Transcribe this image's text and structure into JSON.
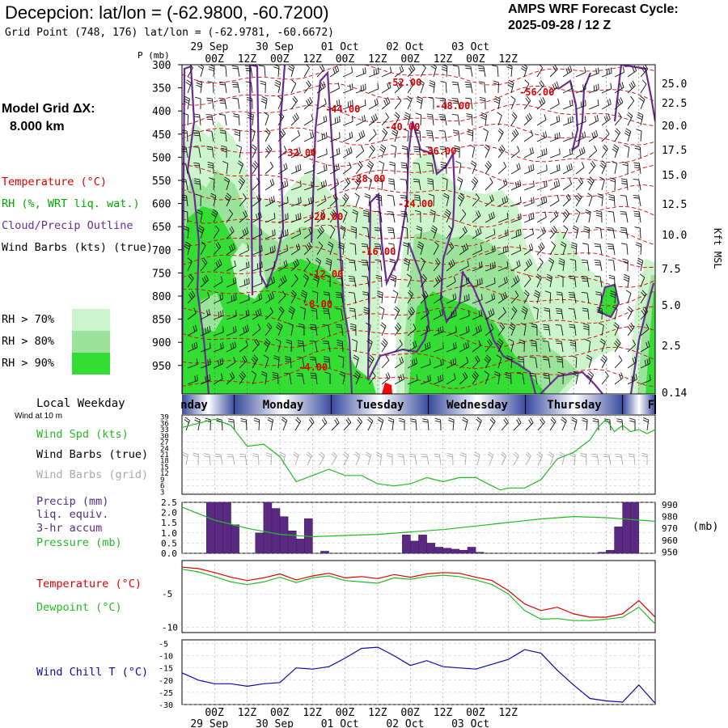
{
  "header": {
    "title": "Decepcion:  lat/lon = (-62.9800, -60.7200)",
    "subtitle": "Grid Point (748, 176) lat/lon = (-62.9781, -60.6672)",
    "cycle_line1": "AMPS WRF Forecast Cycle:",
    "cycle_line2": "2025-09-28 / 12  Z",
    "grid_label1": "Model Grid ΔX:",
    "grid_label2": "8.000 km"
  },
  "legend": {
    "temperature": "Temperature (°C)",
    "rh": "RH (%, WRT liq. wat.)",
    "cloud": "Cloud/Precip Outline",
    "wind": "Wind Barbs (kts) (true)",
    "rh70": "RH > 70%",
    "rh80": "RH > 80%",
    "rh90": "RH > 90%",
    "rh70_color": "#ccf5cc",
    "rh80_color": "#9be39b",
    "rh90_color": "#33dd33"
  },
  "panel_labels": {
    "local_weekday": "Local Weekday",
    "wind_at": "Wind at 10 m",
    "wind_spd": "Wind Spd (kts)",
    "wind_barbs_true": "Wind Barbs (true)",
    "wind_barbs_grid": "Wind Barbs (grid)",
    "precip1": "Precip (mm)",
    "precip2": "liq. equiv.",
    "precip3": "3-hr accum",
    "pressure": "Pressure (mb)",
    "mb_unit": "(mb)",
    "temperature": "Temperature (°C)",
    "dewpoint": "Dewpoint (°C)",
    "wind_chill": "Wind Chill T (°C)"
  },
  "colors": {
    "temperature": "#dd0000",
    "rh_label": "#00aa00",
    "cloud": "#6a2c91",
    "purple": "#5a2a82",
    "green_line": "#22bb22",
    "blue_line": "#0a0aaa",
    "grey_text": "#aaaaaa"
  },
  "chart_data": [
    {
      "type": "heatmap",
      "name": "vertical cross-section",
      "p_axis_label": "P (mb)",
      "height_axis_label": "Kft MSL",
      "pressure_ticks": [
        300,
        350,
        400,
        450,
        500,
        550,
        600,
        650,
        700,
        750,
        800,
        850,
        900,
        950
      ],
      "height_ticks": [
        "25.0",
        "22.5",
        "20.0",
        "17.5",
        "15.0",
        "12.5",
        "10.0",
        "7.5",
        "5.0",
        "2.5",
        "0.14"
      ],
      "top_dates": [
        "29 Sep",
        "30 Sep",
        "01 Oct",
        "02 Oct",
        "03 Oct"
      ],
      "time_labels": [
        "00Z",
        "12Z",
        "00Z",
        "12Z",
        "00Z",
        "12Z",
        "00Z",
        "12Z",
        "00Z",
        "12Z"
      ],
      "temperature_contour_labels": [
        "-52.00",
        "-56.00",
        "-44.00",
        "-48.00",
        "-40.00",
        "-32.00",
        "-36.00",
        "-28.00",
        "-24.00",
        "-20.00",
        "-16.00",
        "-12.00",
        "-8.00",
        "-4.00"
      ]
    },
    {
      "type": "table",
      "name": "local weekday strip",
      "days": [
        "nday",
        "Monday",
        "Tuesday",
        "Wednesday",
        "Thursday",
        "F"
      ]
    },
    {
      "type": "line",
      "name": "10 m wind speed",
      "y_ticks": [
        39,
        36,
        33,
        30,
        27,
        24,
        21,
        18,
        15,
        12,
        9,
        6,
        3
      ],
      "ylim": [
        2,
        40
      ],
      "x_hours": [
        0,
        6,
        12,
        18,
        24,
        30,
        36,
        42,
        48,
        54,
        60,
        66,
        72,
        78,
        84,
        90,
        96,
        102,
        108,
        114,
        117,
        120,
        126,
        132,
        138,
        144,
        150,
        153,
        156,
        159,
        162,
        165,
        168,
        171,
        174
      ],
      "series": [
        {
          "name": "Wind Spd (kts)",
          "values": [
            34,
            36,
            38,
            35,
            25,
            26,
            20,
            8,
            11,
            14,
            11,
            11,
            7,
            6,
            7,
            10,
            8,
            10,
            10,
            6,
            4,
            5,
            5,
            9,
            19,
            22,
            28,
            34,
            38,
            32,
            35,
            32,
            33,
            31,
            33
          ]
        }
      ]
    },
    {
      "type": "bar",
      "name": "3-hr precip and sea-level pressure",
      "precip_ticks": [
        "2.5",
        "2.0",
        "1.5",
        "1.0",
        "0.5",
        "0.0"
      ],
      "pressure_ticks": [
        990,
        980,
        970,
        960,
        950
      ],
      "precip_ylim": [
        0,
        2.5
      ],
      "pressure_ylim": [
        949,
        992
      ],
      "bar_start_hours": [
        9,
        12,
        15,
        18,
        27,
        30,
        33,
        36,
        39,
        42,
        45,
        51,
        81,
        84,
        87,
        90,
        93,
        96,
        99,
        102,
        105,
        108,
        153,
        156,
        159,
        162,
        165
      ],
      "precip_values": [
        2.5,
        2.5,
        2.5,
        1.4,
        1.0,
        2.5,
        2.2,
        1.8,
        1.1,
        0.7,
        1.7,
        0.1,
        0.9,
        0.6,
        0.9,
        0.5,
        0.3,
        0.25,
        0.2,
        0.15,
        0.3,
        0.05,
        0.05,
        0.15,
        1.3,
        2.5,
        2.5
      ],
      "pressure_x_hours": [
        0,
        12,
        24,
        36,
        48,
        60,
        72,
        84,
        96,
        108,
        120,
        132,
        144,
        156,
        168,
        174
      ],
      "pressure_values": [
        988,
        977,
        970,
        965,
        963,
        964,
        965,
        967,
        969,
        972,
        975,
        978,
        980,
        979,
        977,
        976
      ]
    },
    {
      "type": "line",
      "name": "temperature and dewpoint",
      "y_ticks": [
        "-5",
        "-10"
      ],
      "ylim": [
        -10.8,
        0
      ],
      "x_hours": [
        0,
        6,
        12,
        18,
        24,
        30,
        36,
        42,
        48,
        54,
        60,
        66,
        72,
        78,
        84,
        90,
        96,
        102,
        108,
        114,
        120,
        126,
        132,
        138,
        144,
        150,
        156,
        162,
        168,
        174
      ],
      "series": [
        {
          "name": "Temperature",
          "values": [
            -1.0,
            -1.2,
            -1.8,
            -2.5,
            -3.0,
            -2.6,
            -2.0,
            -2.9,
            -2.3,
            -1.9,
            -2.6,
            -2.4,
            -2.7,
            -2.1,
            -2.5,
            -2.0,
            -1.8,
            -1.9,
            -2.5,
            -3.0,
            -4.5,
            -6.5,
            -7.5,
            -7.0,
            -8.0,
            -8.5,
            -8.5,
            -8.0,
            -6.0,
            -8.5
          ]
        },
        {
          "name": "Dewpoint",
          "values": [
            -1.3,
            -1.7,
            -2.4,
            -3.2,
            -3.6,
            -3.2,
            -2.5,
            -3.3,
            -2.6,
            -2.3,
            -3.0,
            -3.2,
            -3.4,
            -2.6,
            -2.8,
            -2.4,
            -2.2,
            -2.4,
            -2.9,
            -3.6,
            -5.0,
            -7.5,
            -8.8,
            -8.7,
            -9.0,
            -9.0,
            -8.8,
            -8.5,
            -7.0,
            -9.5
          ]
        }
      ]
    },
    {
      "type": "line",
      "name": "wind chill",
      "y_ticks": [
        -5,
        -10,
        -15,
        -20,
        -25,
        -30
      ],
      "ylim": [
        -30,
        -3.5
      ],
      "x_hours": [
        0,
        6,
        12,
        18,
        24,
        30,
        36,
        42,
        48,
        54,
        60,
        66,
        72,
        78,
        84,
        90,
        96,
        102,
        108,
        114,
        120,
        126,
        132,
        138,
        144,
        150,
        156,
        162,
        168,
        174
      ],
      "series": [
        {
          "name": "Wind Chill T",
          "values": [
            -17,
            -20,
            -21.5,
            -21.5,
            -22.5,
            -21.5,
            -21,
            -15,
            -15.5,
            -14.5,
            -11,
            -7,
            -6.5,
            -10,
            -14,
            -12,
            -14.5,
            -15,
            -15.5,
            -13.5,
            -11.5,
            -7.5,
            -9,
            -16,
            -22,
            -27.5,
            -28.5,
            -29,
            -22,
            -29.5
          ]
        }
      ]
    }
  ],
  "bottom_axis": {
    "time_labels": [
      "00Z",
      "12Z",
      "00Z",
      "12Z",
      "00Z",
      "12Z",
      "00Z",
      "12Z",
      "00Z",
      "12Z"
    ],
    "dates": [
      "29 Sep",
      "30 Sep",
      "01 Oct",
      "02 Oct",
      "03 Oct"
    ]
  }
}
